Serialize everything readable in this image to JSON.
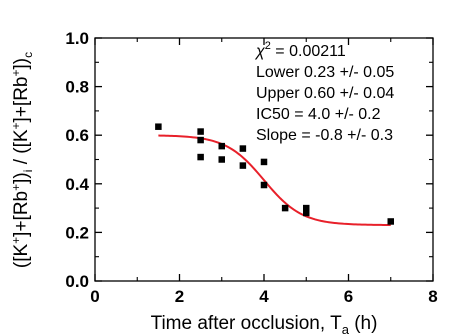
{
  "chart_data": {
    "type": "scatter",
    "title": "",
    "xlim": [
      0,
      8
    ],
    "ylim": [
      0.0,
      1.0
    ],
    "x_ticks": [
      "0",
      "2",
      "4",
      "6",
      "8"
    ],
    "y_ticks": [
      "0.0",
      "0.2",
      "0.4",
      "0.6",
      "0.8",
      "1.0"
    ],
    "xlabel": {
      "main": "Time after occlusion, T",
      "sub": "a",
      "unit": " (h)"
    },
    "ylabel": {
      "p1": "([K",
      "p2": "+",
      "p3": "]+[Rb",
      "p4": "+",
      "p5": "])",
      "p6": "i",
      "p7": " / ([K",
      "p8": "+",
      "p9": "]+[Rb",
      "p10": "+",
      "p11": "])",
      "p12": "c"
    },
    "points": [
      {
        "x": 1.5,
        "y": 0.635
      },
      {
        "x": 2.5,
        "y": 0.615
      },
      {
        "x": 2.5,
        "y": 0.58
      },
      {
        "x": 2.5,
        "y": 0.51
      },
      {
        "x": 3.0,
        "y": 0.555
      },
      {
        "x": 3.0,
        "y": 0.5
      },
      {
        "x": 3.5,
        "y": 0.545
      },
      {
        "x": 3.5,
        "y": 0.475
      },
      {
        "x": 4.0,
        "y": 0.49
      },
      {
        "x": 4.0,
        "y": 0.395
      },
      {
        "x": 4.5,
        "y": 0.3
      },
      {
        "x": 5.0,
        "y": 0.3
      },
      {
        "x": 5.0,
        "y": 0.28
      },
      {
        "x": 7.0,
        "y": 0.245
      }
    ],
    "fit": {
      "type": "sigmoid",
      "lower": 0.23,
      "upper": 0.6,
      "ic50": 4.0,
      "x_range": [
        1.5,
        7.0
      ],
      "color": "#e8202a"
    },
    "annotations": {
      "chi_symbol": "χ",
      "chi_exp": "2",
      "chi_value": " = 0.00211",
      "lower": "Lower  0.23 +/- 0.05",
      "upper": "Upper  0.60 +/- 0.04",
      "ic50": "IC50 = 4.0 +/- 0.2",
      "slope": "Slope = -0.8 +/- 0.3"
    },
    "marker_color": "#000000",
    "grid": false
  }
}
